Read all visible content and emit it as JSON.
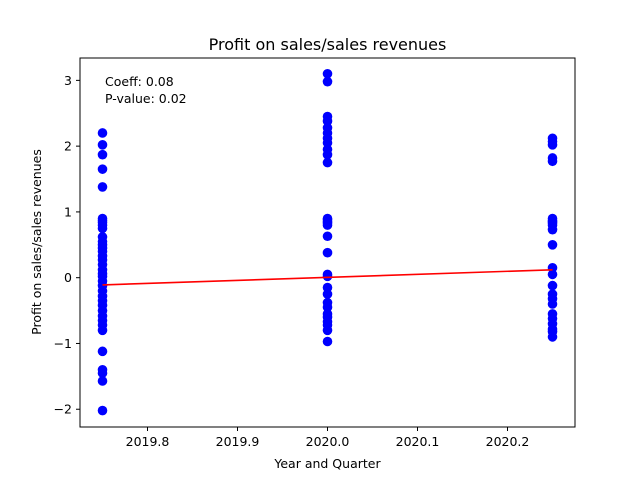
{
  "chart_data": {
    "type": "scatter",
    "title": "Profit on sales/sales revenues",
    "xlabel": "Year and Quarter",
    "ylabel": "Profit on sales/sales revenues",
    "xlim": [
      2019.725,
      2020.275
    ],
    "ylim": [
      -2.27,
      3.34
    ],
    "xticks": [
      2019.8,
      2019.9,
      2020.0,
      2020.1,
      2020.2
    ],
    "xtick_labels": [
      "2019.8",
      "2019.9",
      "2020.0",
      "2020.1",
      "2020.2"
    ],
    "yticks": [
      -2,
      -1,
      0,
      1,
      2,
      3
    ],
    "ytick_labels": [
      "−2",
      "−1",
      "0",
      "1",
      "2",
      "3"
    ],
    "grid": false,
    "annotation": [
      "Coeff: 0.08",
      "P-value: 0.02"
    ],
    "colors": {
      "points": "#0000ff",
      "fit_line": "#ff0000"
    },
    "series": [
      {
        "kind": "scatter",
        "points": [
          [
            2019.75,
            2.2
          ],
          [
            2019.75,
            2.02
          ],
          [
            2019.75,
            1.87
          ],
          [
            2019.75,
            1.65
          ],
          [
            2019.75,
            1.38
          ],
          [
            2019.75,
            0.9
          ],
          [
            2019.75,
            0.87
          ],
          [
            2019.75,
            0.84
          ],
          [
            2019.75,
            0.8
          ],
          [
            2019.75,
            0.75
          ],
          [
            2019.75,
            0.62
          ],
          [
            2019.75,
            0.55
          ],
          [
            2019.75,
            0.5
          ],
          [
            2019.75,
            0.45
          ],
          [
            2019.75,
            0.4
          ],
          [
            2019.75,
            0.33
          ],
          [
            2019.75,
            0.27
          ],
          [
            2019.75,
            0.2
          ],
          [
            2019.75,
            0.12
          ],
          [
            2019.75,
            0.06
          ],
          [
            2019.75,
            0.02
          ],
          [
            2019.75,
            -0.05
          ],
          [
            2019.75,
            -0.12
          ],
          [
            2019.75,
            -0.2
          ],
          [
            2019.75,
            -0.28
          ],
          [
            2019.75,
            -0.35
          ],
          [
            2019.75,
            -0.42
          ],
          [
            2019.75,
            -0.5
          ],
          [
            2019.75,
            -0.58
          ],
          [
            2019.75,
            -0.65
          ],
          [
            2019.75,
            -0.72
          ],
          [
            2019.75,
            -0.8
          ],
          [
            2019.75,
            -1.12
          ],
          [
            2019.75,
            -1.4
          ],
          [
            2019.75,
            -1.45
          ],
          [
            2019.75,
            -1.57
          ],
          [
            2019.75,
            -2.02
          ],
          [
            2020.0,
            3.1
          ],
          [
            2020.0,
            2.98
          ],
          [
            2020.0,
            2.45
          ],
          [
            2020.0,
            2.38
          ],
          [
            2020.0,
            2.28
          ],
          [
            2020.0,
            2.2
          ],
          [
            2020.0,
            2.12
          ],
          [
            2020.0,
            2.05
          ],
          [
            2020.0,
            1.95
          ],
          [
            2020.0,
            1.87
          ],
          [
            2020.0,
            1.75
          ],
          [
            2020.0,
            0.9
          ],
          [
            2020.0,
            0.88
          ],
          [
            2020.0,
            0.85
          ],
          [
            2020.0,
            0.83
          ],
          [
            2020.0,
            0.8
          ],
          [
            2020.0,
            0.63
          ],
          [
            2020.0,
            0.38
          ],
          [
            2020.0,
            0.05
          ],
          [
            2020.0,
            0.02
          ],
          [
            2020.0,
            -0.15
          ],
          [
            2020.0,
            -0.25
          ],
          [
            2020.0,
            -0.38
          ],
          [
            2020.0,
            -0.45
          ],
          [
            2020.0,
            -0.55
          ],
          [
            2020.0,
            -0.6
          ],
          [
            2020.0,
            -0.67
          ],
          [
            2020.0,
            -0.72
          ],
          [
            2020.0,
            -0.8
          ],
          [
            2020.0,
            -0.97
          ],
          [
            2020.25,
            2.12
          ],
          [
            2020.25,
            2.07
          ],
          [
            2020.25,
            2.02
          ],
          [
            2020.25,
            1.82
          ],
          [
            2020.25,
            1.77
          ],
          [
            2020.25,
            0.9
          ],
          [
            2020.25,
            0.87
          ],
          [
            2020.25,
            0.85
          ],
          [
            2020.25,
            0.83
          ],
          [
            2020.25,
            0.8
          ],
          [
            2020.25,
            0.73
          ],
          [
            2020.25,
            0.5
          ],
          [
            2020.25,
            0.15
          ],
          [
            2020.25,
            0.05
          ],
          [
            2020.25,
            -0.12
          ],
          [
            2020.25,
            -0.25
          ],
          [
            2020.25,
            -0.32
          ],
          [
            2020.25,
            -0.4
          ],
          [
            2020.25,
            -0.55
          ],
          [
            2020.25,
            -0.62
          ],
          [
            2020.25,
            -0.7
          ],
          [
            2020.25,
            -0.78
          ],
          [
            2020.25,
            -0.82
          ],
          [
            2020.25,
            -0.9
          ]
        ]
      },
      {
        "kind": "line",
        "points": [
          [
            2019.75,
            -0.11
          ],
          [
            2020.25,
            0.12
          ]
        ]
      }
    ]
  }
}
